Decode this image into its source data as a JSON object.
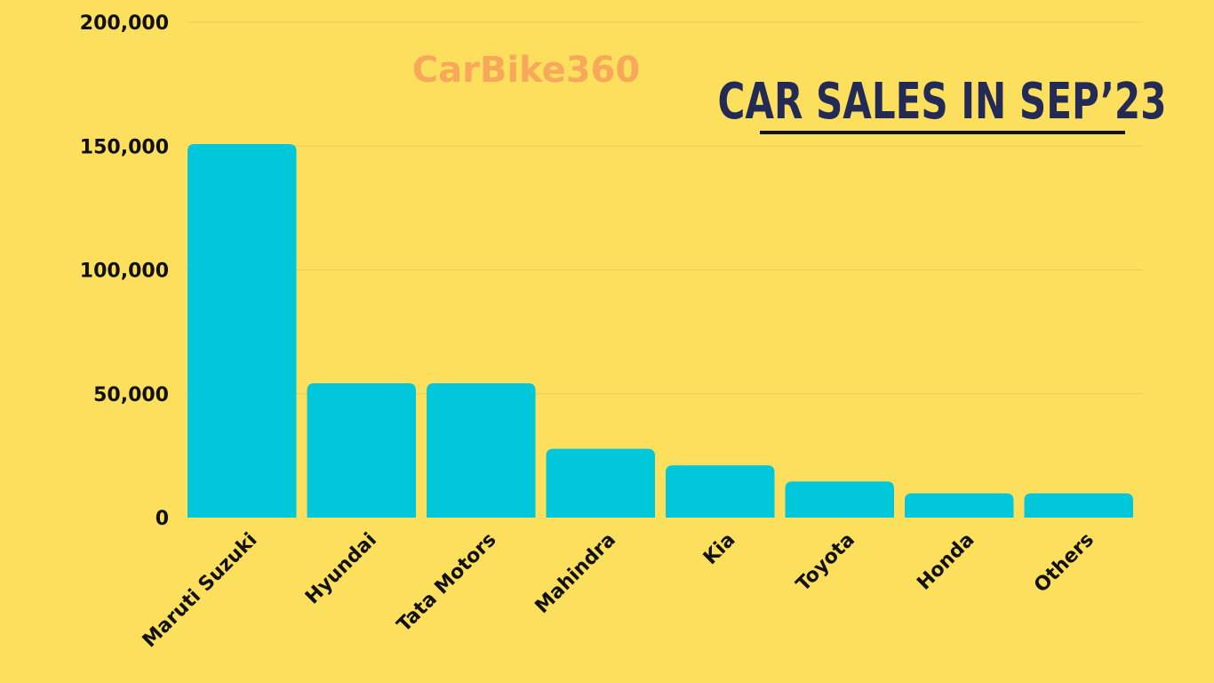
{
  "chart_data": {
    "type": "bar",
    "title": "CAR SALES IN SEP’23",
    "watermark": "CarBike360",
    "categories": [
      "Maruti Suzuki",
      "Hyundai",
      "Tata Motors",
      "Mahindra",
      "Kia",
      "Toyota",
      "Honda",
      "Others"
    ],
    "values": [
      150800,
      54200,
      54200,
      27800,
      21100,
      14600,
      9800,
      9800
    ],
    "ylim": [
      0,
      200000
    ],
    "yticks": [
      0,
      50000,
      100000,
      150000,
      200000
    ],
    "ytick_labels": [
      "0",
      "50,000",
      "100,000",
      "150,000",
      "200,000"
    ],
    "xlabel": "",
    "ylabel": "",
    "grid": true,
    "colors": {
      "background": "#FDDF5E",
      "bar": "#00C8DA",
      "title": "#232A55",
      "watermark": "#F7A85A",
      "gridline": "#E7CC55"
    }
  }
}
